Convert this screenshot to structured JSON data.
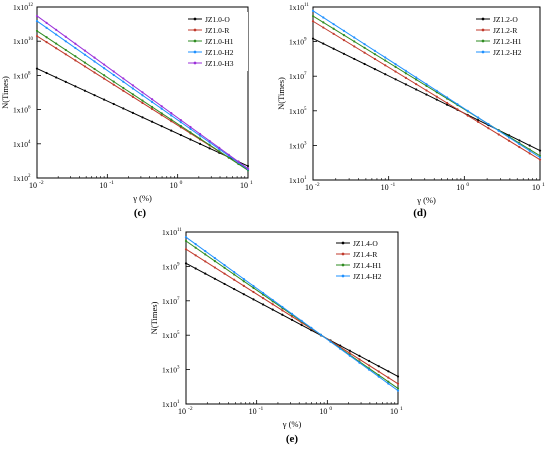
{
  "chart_data": [
    {
      "type": "line",
      "panel_label": "(c)",
      "xlabel": "γ (%)",
      "ylabel": "N(Times)",
      "xscale": "log",
      "yscale": "log",
      "xlim": [
        0.01,
        10
      ],
      "ylim": [
        100,
        1000000000000.0
      ],
      "x_ticks": [
        "10",
        "10",
        "10",
        "10"
      ],
      "x_tick_exps": [
        "-2",
        "-1",
        "0",
        "1"
      ],
      "y_ticks": [
        "1x10",
        "1x10",
        "1x10",
        "1x10",
        "1x10",
        "1x10"
      ],
      "y_tick_exps": [
        "2",
        "4",
        "6",
        "8",
        "10",
        "12"
      ],
      "legend_position": "top-right",
      "series": [
        {
          "name": "JZ1.0-O",
          "color": "#000000",
          "x": [
            0.01,
            10
          ],
          "y": [
            250000000.0,
            500
          ]
        },
        {
          "name": "JZ1.0-R",
          "color": "#c0392b",
          "x": [
            0.01,
            10
          ],
          "y": [
            20000000000.0,
            300
          ]
        },
        {
          "name": "JZ1.0-H1",
          "color": "#2e8b20",
          "x": [
            0.01,
            10
          ],
          "y": [
            40000000000.0,
            280
          ]
        },
        {
          "name": "JZ1.0-H2",
          "color": "#1e90ff",
          "x": [
            0.01,
            10
          ],
          "y": [
            150000000000.0,
            320
          ]
        },
        {
          "name": "JZ1.0-H3",
          "color": "#9b30d9",
          "x": [
            0.01,
            10
          ],
          "y": [
            300000000000.0,
            350
          ]
        }
      ]
    },
    {
      "type": "line",
      "panel_label": "(d)",
      "xlabel": "γ (%)",
      "ylabel": "N(Times)",
      "xscale": "log",
      "yscale": "log",
      "xlim": [
        0.01,
        10
      ],
      "ylim": [
        10,
        100000000000.0
      ],
      "x_ticks": [
        "10",
        "10",
        "10",
        "10"
      ],
      "x_tick_exps": [
        "-2",
        "-1",
        "0",
        "1"
      ],
      "y_ticks": [
        "1x10",
        "1x10",
        "1x10",
        "1x10",
        "1x10",
        "1x10"
      ],
      "y_tick_exps": [
        "1",
        "3",
        "5",
        "7",
        "9",
        "11"
      ],
      "legend_position": "top-right",
      "series": [
        {
          "name": "JZ1.2-O",
          "color": "#000000",
          "x": [
            0.01,
            10
          ],
          "y": [
            1500000000.0,
            500
          ]
        },
        {
          "name": "JZ1.2-R",
          "color": "#c0392b",
          "x": [
            0.01,
            10
          ],
          "y": [
            15000000000.0,
            150
          ]
        },
        {
          "name": "JZ1.2-H1",
          "color": "#2e8b20",
          "x": [
            0.01,
            10
          ],
          "y": [
            30000000000.0,
            250
          ]
        },
        {
          "name": "JZ1.2-H2",
          "color": "#1e90ff",
          "x": [
            0.01,
            10
          ],
          "y": [
            60000000000.0,
            200
          ]
        }
      ]
    },
    {
      "type": "line",
      "panel_label": "(e)",
      "xlabel": "γ (%)",
      "ylabel": "N(Times)",
      "xscale": "log",
      "yscale": "log",
      "xlim": [
        0.01,
        10
      ],
      "ylim": [
        10,
        100000000000.0
      ],
      "x_ticks": [
        "10",
        "10",
        "10",
        "10"
      ],
      "x_tick_exps": [
        "-2",
        "-1",
        "0",
        "1"
      ],
      "y_ticks": [
        "1x10",
        "1x10",
        "1x10",
        "1x10",
        "1x10",
        "1x10"
      ],
      "y_tick_exps": [
        "1",
        "3",
        "5",
        "7",
        "9",
        "11"
      ],
      "legend_position": "top-right",
      "series": [
        {
          "name": "JZ1.4-O",
          "color": "#000000",
          "x": [
            0.01,
            10
          ],
          "y": [
            1500000000.0,
            400
          ]
        },
        {
          "name": "JZ1.4-R",
          "color": "#c0392b",
          "x": [
            0.01,
            10
          ],
          "y": [
            10000000000.0,
            150
          ]
        },
        {
          "name": "JZ1.4-H1",
          "color": "#2e8b20",
          "x": [
            0.01,
            10
          ],
          "y": [
            30000000000.0,
            80
          ]
        },
        {
          "name": "JZ1.4-H2",
          "color": "#1e90ff",
          "x": [
            0.01,
            10
          ],
          "y": [
            50000000000.0,
            60
          ]
        }
      ]
    }
  ]
}
